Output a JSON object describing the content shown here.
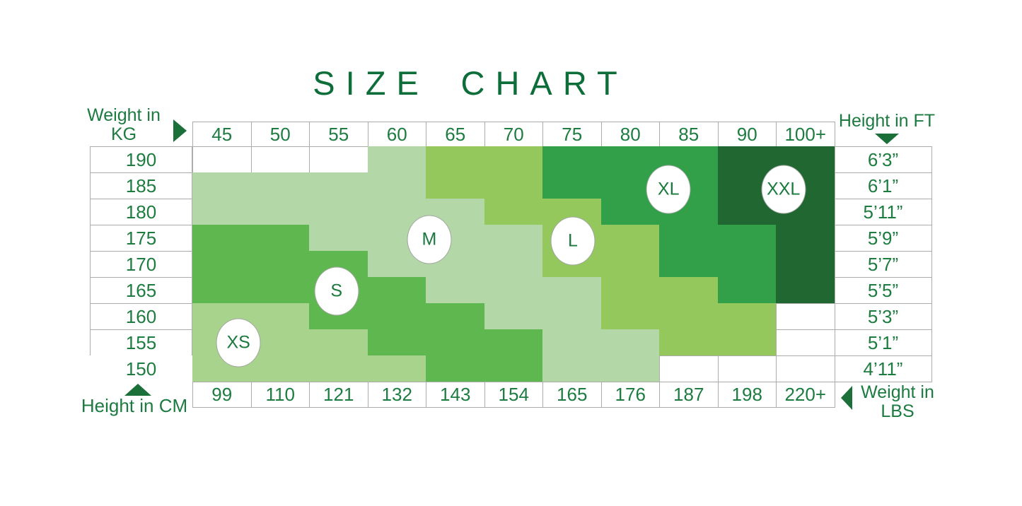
{
  "title": "SIZE CHART",
  "axis_labels": {
    "top_left": {
      "line1": "Weight in",
      "line2": "KG"
    },
    "top_right": "Height in FT",
    "bottom_left": "Height in CM",
    "bottom_right": {
      "line1": "Weight in",
      "line2": "LBS"
    }
  },
  "chart_data": {
    "type": "heatmap",
    "title": "SIZE CHART",
    "x_axis_top_label": "Weight in KG",
    "x_axis_bottom_label": "Weight in LBS",
    "y_axis_left_label": "Height in CM",
    "y_axis_right_label": "Height in FT",
    "columns_weight_kg": [
      "45",
      "50",
      "55",
      "60",
      "65",
      "70",
      "75",
      "80",
      "85",
      "90",
      "100+"
    ],
    "columns_weight_lbs": [
      "99",
      "110",
      "121",
      "132",
      "143",
      "154",
      "165",
      "176",
      "187",
      "198",
      "220+"
    ],
    "rows_height_cm": [
      "190",
      "185",
      "180",
      "175",
      "170",
      "165",
      "160",
      "155",
      "150"
    ],
    "rows_height_ft": [
      "6’3”",
      "6’1”",
      "5’11”",
      "5’9”",
      "5’7”",
      "5’5”",
      "5’3”",
      "5’1”",
      "4’11”"
    ],
    "cell_sizes": [
      [
        "",
        "",
        "",
        "M",
        "L",
        "L",
        "XL",
        "XL",
        "XL",
        "XXL",
        "XXL"
      ],
      [
        "M",
        "M",
        "M",
        "M",
        "L",
        "L",
        "XL",
        "XL",
        "XL",
        "XXL",
        "XXL"
      ],
      [
        "M",
        "M",
        "M",
        "M",
        "M",
        "L",
        "L",
        "XL",
        "XL",
        "XXL",
        "XXL"
      ],
      [
        "S",
        "S",
        "M",
        "M",
        "M",
        "M",
        "L",
        "L",
        "XL",
        "XL",
        "XXL"
      ],
      [
        "S",
        "S",
        "S",
        "M",
        "M",
        "M",
        "L",
        "L",
        "XL",
        "XL",
        "XXL"
      ],
      [
        "S",
        "S",
        "S",
        "S",
        "M",
        "M",
        "M",
        "L",
        "L",
        "XL",
        "XXL"
      ],
      [
        "XS",
        "XS",
        "S",
        "S",
        "S",
        "M",
        "M",
        "L",
        "L",
        "L",
        ""
      ],
      [
        "XS",
        "XS",
        "XS",
        "S",
        "S",
        "S",
        "M",
        "M",
        "L",
        "L",
        ""
      ],
      [
        "XS",
        "XS",
        "XS",
        "XS",
        "S",
        "S",
        "M",
        "M",
        "",
        "",
        ""
      ]
    ],
    "size_colors": {
      "XS": "#a7d38c",
      "S": "#5fb84f",
      "M": "#b3d7a6",
      "L": "#94c85d",
      "XL": "#31a048",
      "XXL": "#216731",
      "empty": "#ffffff"
    },
    "size_markers": [
      {
        "label": "XS",
        "col_pos": 0.79,
        "row_pos": 7.5
      },
      {
        "label": "S",
        "col_pos": 2.47,
        "row_pos": 5.55
      },
      {
        "label": "M",
        "col_pos": 4.06,
        "row_pos": 3.57
      },
      {
        "label": "L",
        "col_pos": 6.52,
        "row_pos": 3.62
      },
      {
        "label": "XL",
        "col_pos": 8.16,
        "row_pos": 1.65
      },
      {
        "label": "XXL",
        "col_pos": 10.13,
        "row_pos": 1.65
      }
    ]
  }
}
